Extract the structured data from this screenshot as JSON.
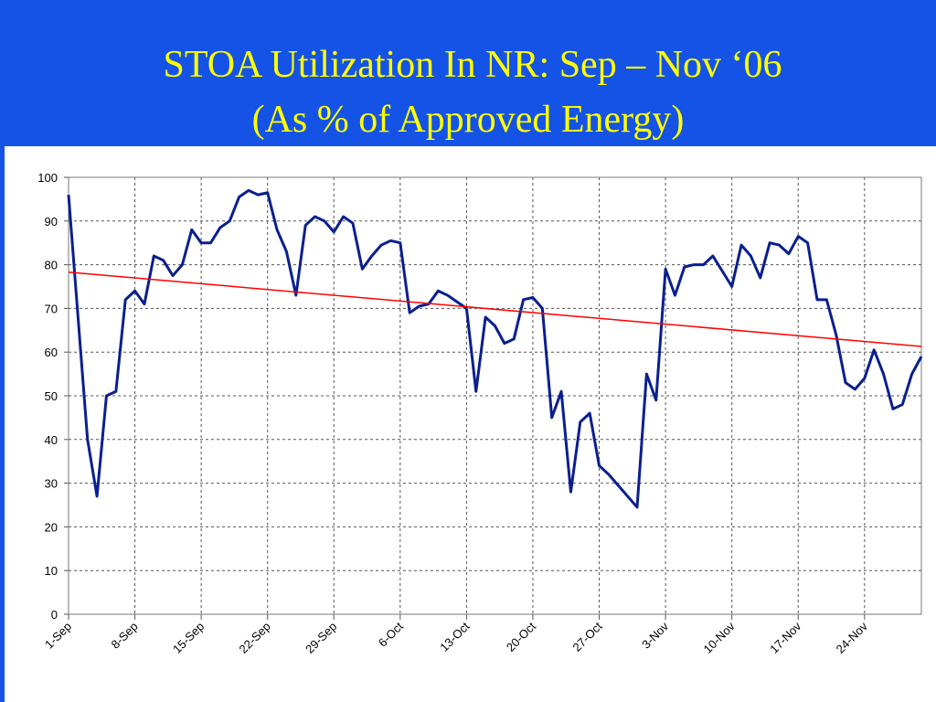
{
  "chart_data": {
    "type": "line",
    "title": "STOA Utilization In NR: Sep – Nov ‘06",
    "subtitle": "(As % of Approved Energy)",
    "categories": [
      "1-Sep",
      null,
      null,
      null,
      null,
      null,
      null,
      "8-Sep",
      null,
      null,
      null,
      null,
      null,
      null,
      "15-Sep",
      null,
      null,
      null,
      null,
      null,
      null,
      "22-Sep",
      null,
      null,
      null,
      null,
      null,
      null,
      "29-Sep",
      null,
      null,
      null,
      null,
      null,
      null,
      "6-Oct",
      null,
      null,
      null,
      null,
      null,
      null,
      "13-Oct",
      null,
      null,
      null,
      null,
      null,
      null,
      "20-Oct",
      null,
      null,
      null,
      null,
      null,
      null,
      "27-Oct",
      null,
      null,
      null,
      null,
      null,
      null,
      "3-Nov",
      null,
      null,
      null,
      null,
      null,
      null,
      "10-Nov",
      null,
      null,
      null,
      null,
      null,
      null,
      "17-Nov",
      null,
      null,
      null,
      null,
      null,
      null,
      "24-Nov",
      null,
      null,
      null,
      null,
      null,
      null
    ],
    "series": [
      {
        "color": "#0a1f8f",
        "values": [
          96,
          68,
          40,
          27,
          50,
          51,
          72,
          74,
          71,
          82,
          81,
          77.5,
          80,
          88,
          85,
          85,
          88.5,
          90,
          95.5,
          97,
          96,
          96.5,
          88,
          83,
          73,
          89,
          91,
          90,
          87.5,
          91,
          89.5,
          79,
          82,
          84.5,
          85.5,
          85,
          69,
          70.5,
          71,
          74,
          73,
          71.5,
          70,
          51,
          68,
          66,
          62,
          63,
          72,
          72.5,
          70,
          45,
          51,
          28,
          44,
          46,
          34,
          32,
          29.5,
          27,
          24.5,
          55,
          49,
          79,
          73,
          79.5,
          80,
          80,
          82,
          78.5,
          75,
          84.5,
          82,
          77,
          85,
          84.5,
          82.5,
          86.5,
          85,
          72,
          72,
          64,
          53,
          51.5,
          54,
          60.5,
          55,
          47,
          48,
          55,
          59
        ]
      }
    ],
    "trend": {
      "color": "#ff0000",
      "values": [
        78.3,
        61.3
      ]
    },
    "ylim": [
      0,
      100
    ],
    "yticks": [
      0,
      10,
      20,
      30,
      40,
      50,
      60,
      70,
      80,
      90,
      100
    ],
    "grid": true
  }
}
